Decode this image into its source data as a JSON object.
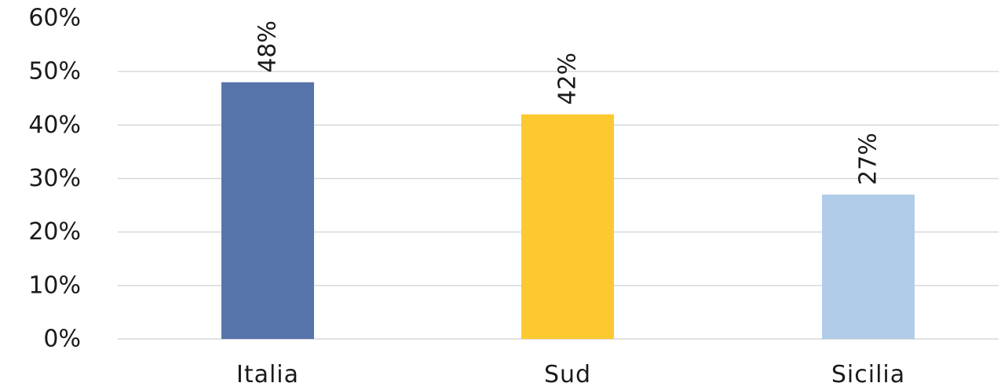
{
  "chart_data": {
    "type": "bar",
    "categories": [
      "Italia",
      "Sud",
      "Sicilia"
    ],
    "values": [
      48,
      42,
      27
    ],
    "data_labels": [
      "48%",
      "42%",
      "27%"
    ],
    "colors": [
      "#5875ab",
      "#fcc931",
      "#b1cce8"
    ],
    "grid_color": "#d9d9d9",
    "y_ticks": [
      0,
      10,
      20,
      30,
      40,
      50,
      60
    ],
    "y_tick_labels": [
      "0%",
      "10%",
      "20%",
      "30%",
      "40%",
      "50%",
      "60%"
    ],
    "ylim": [
      0,
      60
    ],
    "grid": true,
    "data_label_orientation": "vertical",
    "title": "",
    "xlabel": "",
    "ylabel": ""
  }
}
